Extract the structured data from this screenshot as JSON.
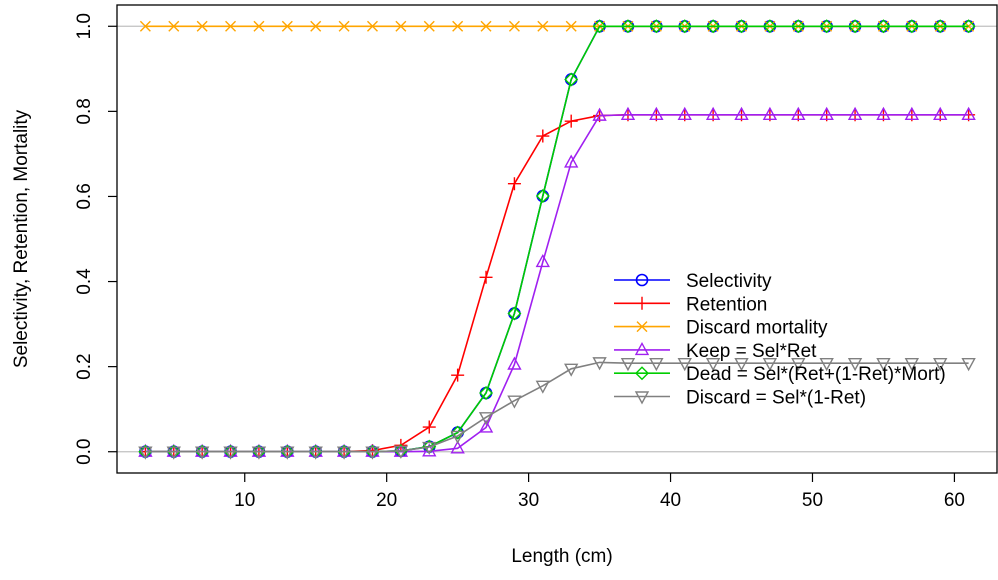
{
  "chart_data": {
    "type": "line",
    "title": "",
    "xlabel": "Length (cm)",
    "ylabel": "Selectivity, Retention, Mortality",
    "xlim": [
      1,
      63
    ],
    "ylim": [
      -0.05,
      1.05
    ],
    "x_ticks": [
      10,
      20,
      30,
      40,
      50,
      60
    ],
    "y_ticks": [
      0.0,
      0.2,
      0.4,
      0.6,
      0.8,
      1.0
    ],
    "x_tick_labels": [
      "10",
      "20",
      "30",
      "40",
      "50",
      "60"
    ],
    "y_tick_labels": [
      "0.0",
      "0.2",
      "0.4",
      "0.6",
      "0.8",
      "1.0"
    ],
    "reference_lines": [
      0,
      1
    ],
    "reference_line_color": "#c0c0c0",
    "grid": false,
    "legend_position": "right",
    "x": [
      3,
      5,
      7,
      9,
      11,
      13,
      15,
      17,
      19,
      21,
      23,
      25,
      27,
      29,
      31,
      33,
      35,
      37,
      39,
      41,
      43,
      45,
      47,
      49,
      51,
      53,
      55,
      57,
      59,
      61
    ],
    "series": [
      {
        "name": "Selectivity",
        "color": "#0000ff",
        "marker": "circle",
        "values": [
          0,
          0,
          0,
          0,
          0,
          0,
          0,
          0,
          0,
          0.002,
          0.012,
          0.045,
          0.138,
          0.325,
          0.601,
          0.875,
          1,
          1,
          1,
          1,
          1,
          1,
          1,
          1,
          1,
          1,
          1,
          1,
          1,
          1
        ]
      },
      {
        "name": "Retention",
        "color": "#ff0000",
        "marker": "plus",
        "values": [
          0,
          0,
          0,
          0,
          0,
          0,
          0,
          0,
          0.003,
          0.015,
          0.058,
          0.18,
          0.41,
          0.63,
          0.742,
          0.777,
          0.79,
          0.792,
          0.792,
          0.792,
          0.792,
          0.792,
          0.792,
          0.792,
          0.792,
          0.792,
          0.792,
          0.792,
          0.792,
          0.792
        ]
      },
      {
        "name": "Discard mortality",
        "color": "#ffa500",
        "marker": "cross",
        "values": [
          1,
          1,
          1,
          1,
          1,
          1,
          1,
          1,
          1,
          1,
          1,
          1,
          1,
          1,
          1,
          1,
          1,
          1,
          1,
          1,
          1,
          1,
          1,
          1,
          1,
          1,
          1,
          1,
          1,
          1
        ]
      },
      {
        "name": "Keep = Sel*Ret",
        "color": "#a020f0",
        "marker": "triangle-up",
        "values": [
          0,
          0,
          0,
          0,
          0,
          0,
          0,
          0,
          0,
          0,
          0.001,
          0.008,
          0.057,
          0.205,
          0.446,
          0.68,
          0.79,
          0.792,
          0.792,
          0.792,
          0.792,
          0.792,
          0.792,
          0.792,
          0.792,
          0.792,
          0.792,
          0.792,
          0.792,
          0.792
        ]
      },
      {
        "name": "Dead = Sel*(Ret+(1-Ret)*Mort)",
        "color": "#00cd00",
        "marker": "diamond",
        "values": [
          0,
          0,
          0,
          0,
          0,
          0,
          0,
          0,
          0,
          0.002,
          0.012,
          0.045,
          0.138,
          0.325,
          0.601,
          0.875,
          1,
          1,
          1,
          1,
          1,
          1,
          1,
          1,
          1,
          1,
          1,
          1,
          1,
          1
        ]
      },
      {
        "name": "Discard = Sel*(1-Ret)",
        "color": "#808080",
        "marker": "triangle-down",
        "values": [
          0,
          0,
          0,
          0,
          0,
          0,
          0,
          0,
          0,
          0.002,
          0.011,
          0.037,
          0.081,
          0.12,
          0.155,
          0.195,
          0.21,
          0.208,
          0.208,
          0.208,
          0.208,
          0.208,
          0.208,
          0.208,
          0.208,
          0.208,
          0.208,
          0.208,
          0.208,
          0.208
        ]
      }
    ]
  }
}
